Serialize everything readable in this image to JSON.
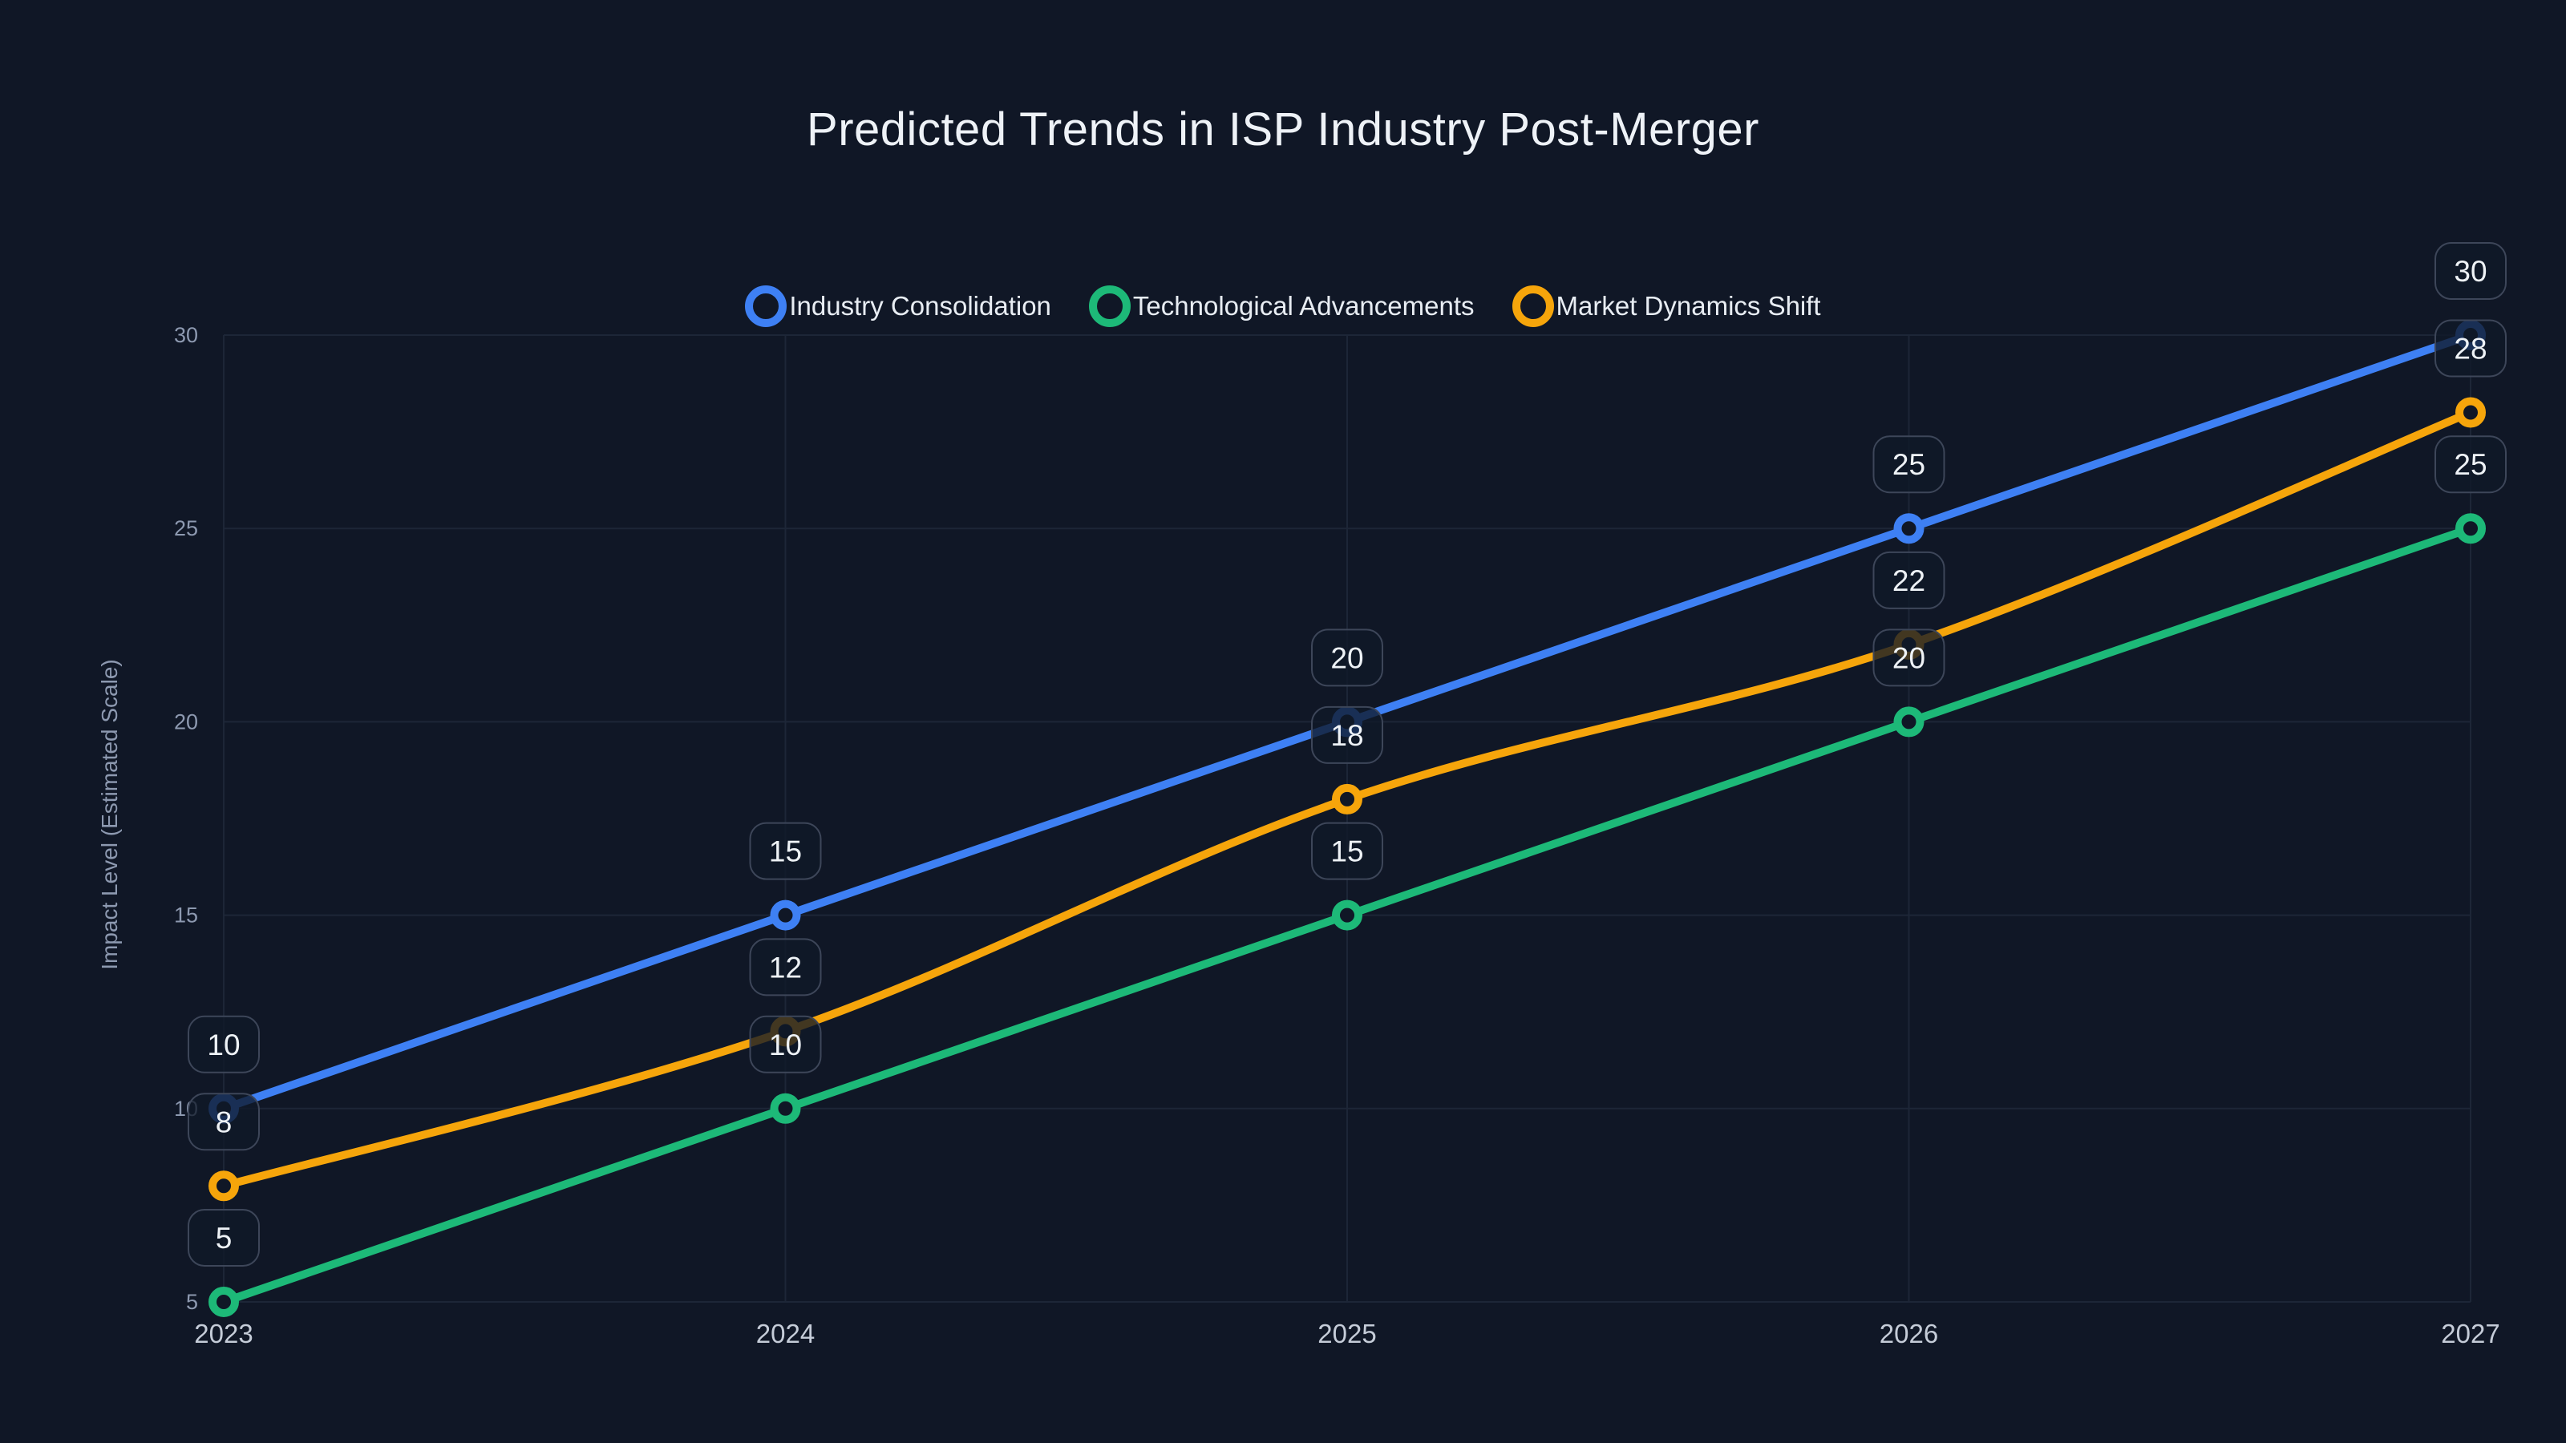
{
  "page": {
    "title": "Predicted Trends in ISP Industry Post-Merger",
    "background": "#101726"
  },
  "legend": {
    "items": [
      {
        "label": "Industry Consolidation",
        "color": "#3e80f4"
      },
      {
        "label": "Technological Advancements",
        "color": "#1db978"
      },
      {
        "label": "Market Dynamics Shift",
        "color": "#f6a50b"
      }
    ]
  },
  "chart_data": {
    "type": "line",
    "title": "Predicted Trends in ISP Industry Post-Merger",
    "categories": [
      "2023",
      "2024",
      "2025",
      "2026",
      "2027"
    ],
    "series": [
      {
        "name": "Industry Consolidation",
        "color": "#3e80f4",
        "values": [
          10,
          15,
          20,
          25,
          30
        ]
      },
      {
        "name": "Technological Advancements",
        "color": "#1db978",
        "values": [
          5,
          10,
          15,
          20,
          25
        ]
      },
      {
        "name": "Market Dynamics Shift",
        "color": "#f6a50b",
        "values": [
          8,
          12,
          18,
          22,
          28
        ]
      }
    ],
    "xlabel": "",
    "ylabel": "Impact Level (Estimated Scale)",
    "ylim": [
      5,
      30
    ],
    "yticks": [
      5,
      10,
      15,
      20,
      25,
      30
    ],
    "grid": true,
    "legend_position": "top",
    "point_labels": true,
    "smooth": true
  },
  "styles": {
    "grid_color": "#1d2637",
    "tick_color": "#8d99b0",
    "x_label_color": "#c5ccd8",
    "axis_title_color": "#8d99b0",
    "title_color": "#eef2f7",
    "legend_text_color": "#e8edf3",
    "point_label_text_color": "#eef2f6",
    "point_label_box_fill": "rgba(16,24,40,0.78)",
    "point_label_box_border": "#3d4659"
  }
}
